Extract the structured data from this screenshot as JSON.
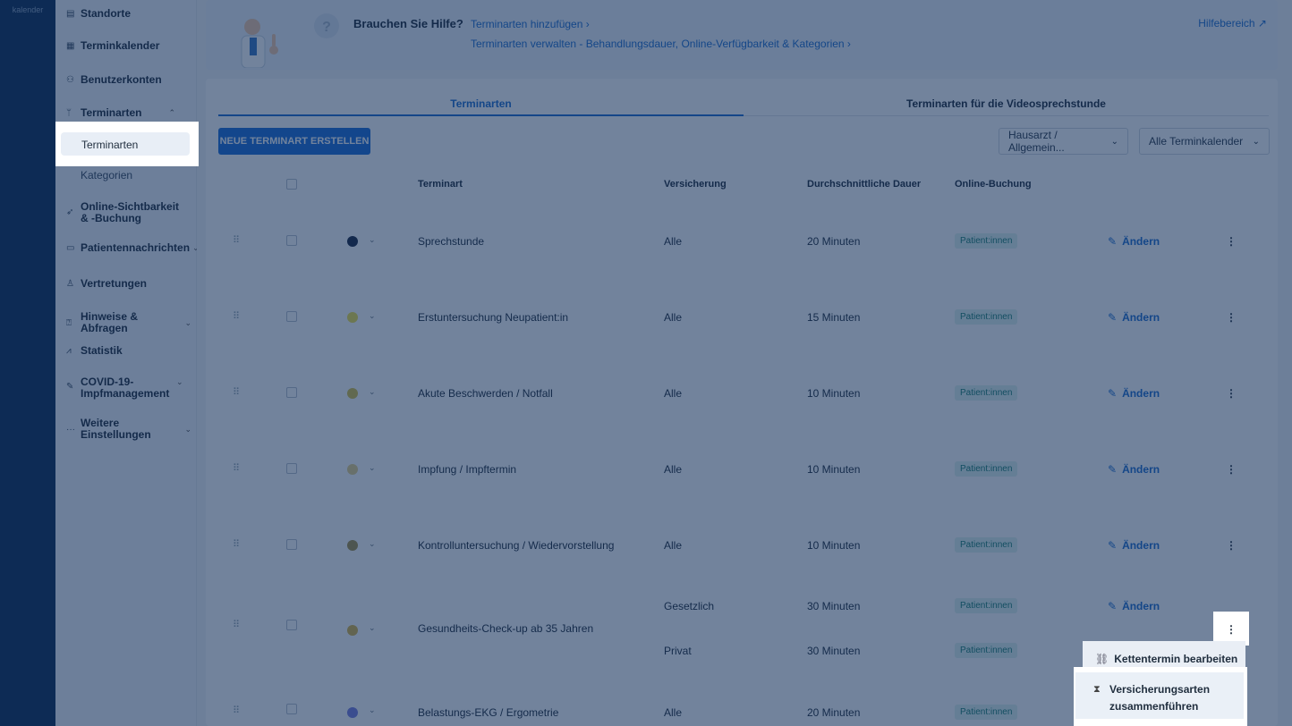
{
  "rail": {
    "label": "kalender"
  },
  "sidebar": {
    "items": [
      {
        "label": "Standorte",
        "icon": "building-icon",
        "glyph": "▤"
      },
      {
        "label": "Terminkalender",
        "icon": "calendar-icon",
        "glyph": "▦"
      },
      {
        "label": "Benutzerkonten",
        "icon": "users-icon",
        "glyph": "⚇"
      },
      {
        "label": "Terminarten",
        "icon": "stethoscope-icon",
        "glyph": "ᛘ",
        "expanded": true,
        "children": [
          "Terminarten",
          "Kategorien"
        ]
      },
      {
        "label": "Online-Sichtbarkeit & -Buchung",
        "icon": "cursor-icon",
        "glyph": "➶"
      },
      {
        "label": "Patientennachrichten",
        "icon": "message-icon",
        "glyph": "▭"
      },
      {
        "label": "Vertretungen",
        "icon": "person-icon",
        "glyph": "♙"
      },
      {
        "label": "Hinweise & Abfragen",
        "icon": "question-icon",
        "glyph": "⍰"
      },
      {
        "label": "Statistik",
        "icon": "chart-icon",
        "glyph": "⩘"
      },
      {
        "label": "COVID-19-Impfmanagement",
        "icon": "syringe-icon",
        "glyph": "✎"
      },
      {
        "label": "Weitere Einstellungen",
        "icon": "more-icon",
        "glyph": "···"
      }
    ]
  },
  "help": {
    "title": "Brauchen Sie Hilfe?",
    "link1": "Terminarten hinzufügen  ›",
    "link2": "Terminarten verwalten - Behandlungsdauer, Online-Verfügbarkeit & Kategorien  ›",
    "area": "Hilfebereich ↗"
  },
  "tabs": [
    "Terminarten",
    "Terminarten für die Videosprechstunde"
  ],
  "toolbar": {
    "new_button": "NEUE TERMINART ERSTELLEN",
    "filter1": "Hausarzt / Allgemein...",
    "filter2": "Alle Terminkalender"
  },
  "table": {
    "headers": [
      "Terminart",
      "Versicherung",
      "Durchschnittliche Dauer",
      "Online-Buchung"
    ],
    "edit_label": "Ändern",
    "rows": [
      {
        "name": "Sprechstunde",
        "color": "#1e2a44",
        "lines": [
          {
            "insurance": "Alle",
            "duration": "20 Minuten",
            "booking": "Patient:innen"
          }
        ]
      },
      {
        "name": "Erstuntersuchung Neupatient:in",
        "color": "#f0e24e",
        "lines": [
          {
            "insurance": "Alle",
            "duration": "15 Minuten",
            "booking": "Patient:innen"
          }
        ]
      },
      {
        "name": "Akute Beschwerden / Notfall",
        "color": "#d7c24a",
        "lines": [
          {
            "insurance": "Alle",
            "duration": "10 Minuten",
            "booking": "Patient:innen"
          }
        ]
      },
      {
        "name": "Impfung / Impftermin",
        "color": "#e6d28a",
        "lines": [
          {
            "insurance": "Alle",
            "duration": "10 Minuten",
            "booking": "Patient:innen"
          }
        ]
      },
      {
        "name": "Kontrolluntersuchung / Wiedervorstellung",
        "color": "#a8914a",
        "lines": [
          {
            "insurance": "Alle",
            "duration": "10 Minuten",
            "booking": "Patient:innen"
          }
        ]
      },
      {
        "name": "Gesundheits-Check-up ab 35 Jahren",
        "color": "#d9b64a",
        "lines": [
          {
            "insurance": "Gesetzlich",
            "duration": "30 Minuten",
            "booking": "Patient:innen"
          },
          {
            "insurance": "Privat",
            "duration": "30 Minuten",
            "booking": "Patient:innen"
          }
        ]
      },
      {
        "name": "Belastungs-EKG / Ergometrie",
        "color": "#7b7fe0",
        "lines": [
          {
            "insurance": "Alle",
            "duration": "20 Minuten",
            "booking": "Patient:innen"
          }
        ]
      }
    ]
  },
  "context_menu": {
    "item1": "Kettentermin bearbeiten",
    "item2": "Versicherungsarten zusammenführen",
    "item2_line1": "Versicherungsarten",
    "item2_line2": "zusammenführen"
  }
}
